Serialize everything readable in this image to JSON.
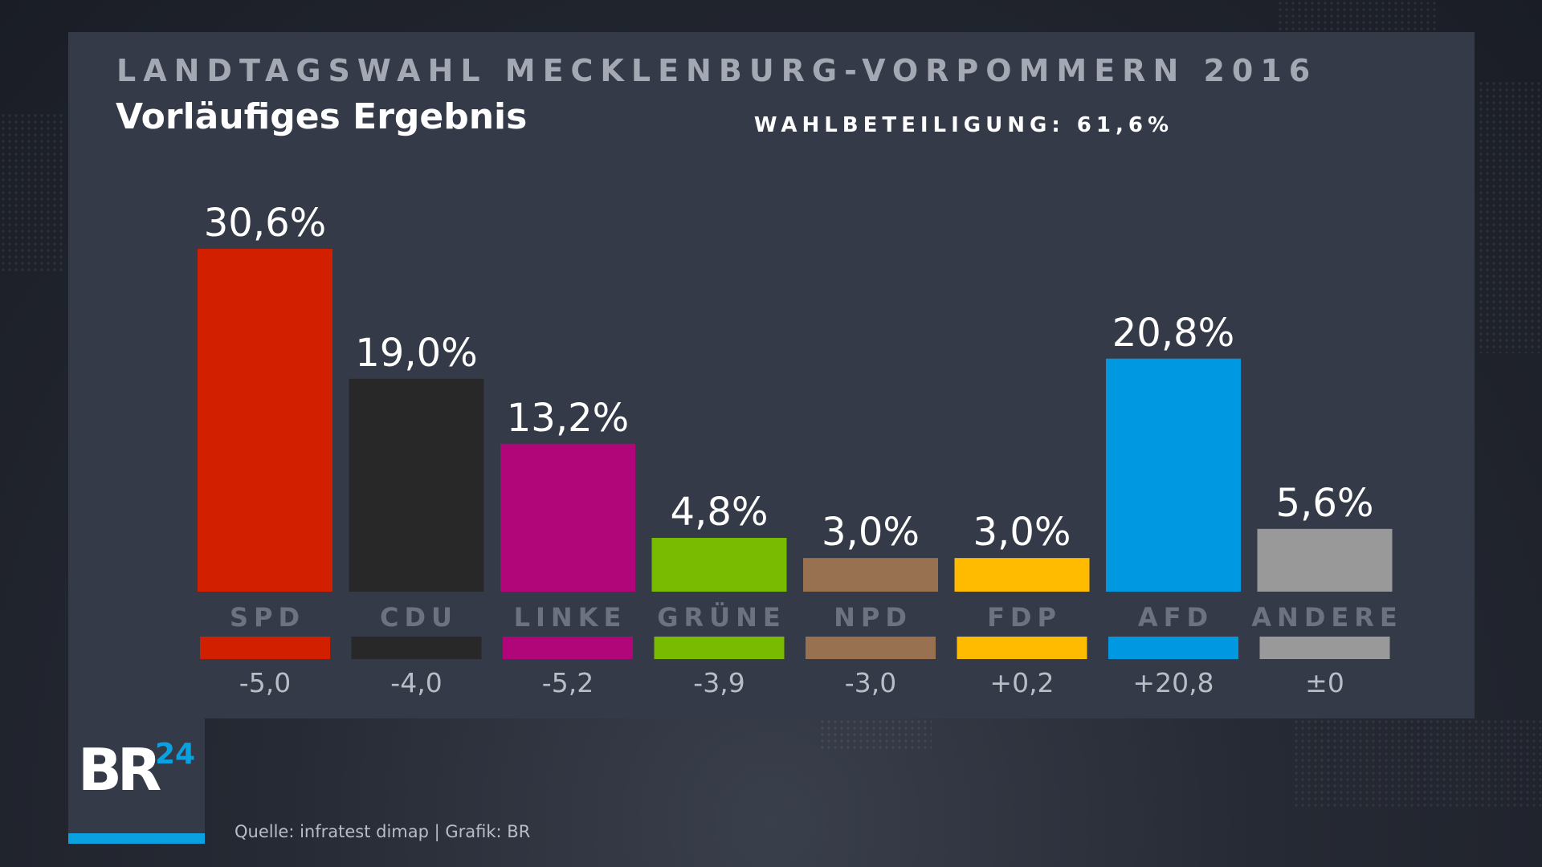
{
  "header": {
    "title": "LANDTAGSWAHL MECKLENBURG-VORPOMMERN 2016",
    "subtitle": "Vorläufiges Ergebnis",
    "turnout": "WAHLBETEILIGUNG: 61,6%"
  },
  "chart_data": {
    "type": "bar",
    "title": "LANDTAGSWAHL MECKLENBURG-VORPOMMERN 2016",
    "subtitle": "Vorläufiges Ergebnis",
    "categories": [
      "SPD",
      "CDU",
      "LINKE",
      "GRÜNE",
      "NPD",
      "FDP",
      "AFD",
      "ANDERE"
    ],
    "values": [
      30.6,
      19.0,
      13.2,
      4.8,
      3.0,
      3.0,
      20.8,
      5.6
    ],
    "value_labels": [
      "30,6%",
      "19,0%",
      "13,2%",
      "4,8%",
      "3,0%",
      "3,0%",
      "20,8%",
      "5,6%"
    ],
    "changes": [
      -5.0,
      -4.0,
      -5.2,
      -3.9,
      -3.0,
      0.2,
      20.8,
      0
    ],
    "change_labels": [
      "-5,0",
      "-4,0",
      "-5,2",
      "-3,9",
      "-3,0",
      "+0,2",
      "+20,8",
      "±0"
    ],
    "colors": [
      "#d21f00",
      "#282828",
      "#b0067a",
      "#78bb00",
      "#987150",
      "#ffbb00",
      "#0098e0",
      "#999999"
    ],
    "ylim": [
      0,
      30.6
    ],
    "xlabel": "",
    "ylabel": "",
    "grid": false,
    "legend": "none"
  },
  "logo": {
    "text": "BR",
    "superscript": "24",
    "bar_color": "#0ba0e0",
    "superscript_color": "#0ba0e0"
  },
  "footer": {
    "source": "Quelle: infratest dimap | Grafik: BR"
  }
}
